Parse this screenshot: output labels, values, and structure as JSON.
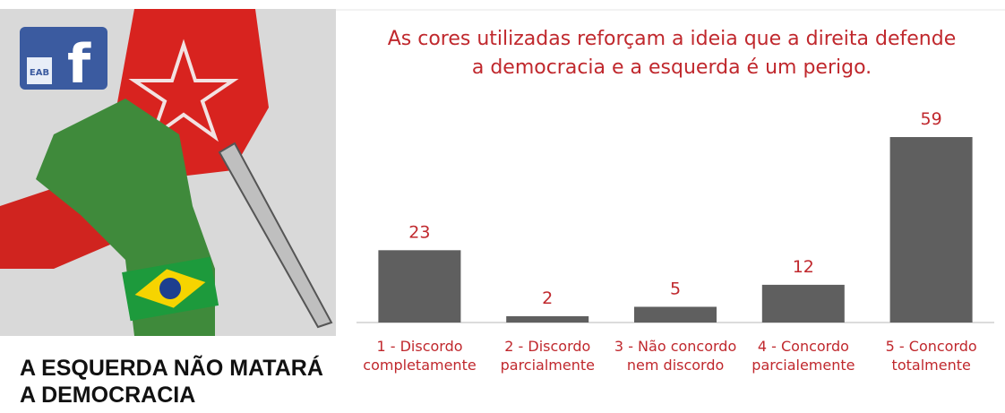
{
  "icon_text": "EAB",
  "caption": "A ESQUERDA NÃO MATARÁ A DEMOCRACIA",
  "chart_data": {
    "type": "bar",
    "title": "As cores utilizadas reforçam a ideia que a direita defende a democracia e a esquerda é um perigo.",
    "categories": [
      "1 - Discordo completamente",
      "2 - Discordo parcialmente",
      "3 - Não concordo nem discordo",
      "4 - Concordo parcialemente",
      "5 - Concordo totalmente"
    ],
    "values": [
      23,
      2,
      5,
      12,
      59
    ],
    "color": "#5f5f5f",
    "ylim": [
      0,
      59
    ]
  }
}
